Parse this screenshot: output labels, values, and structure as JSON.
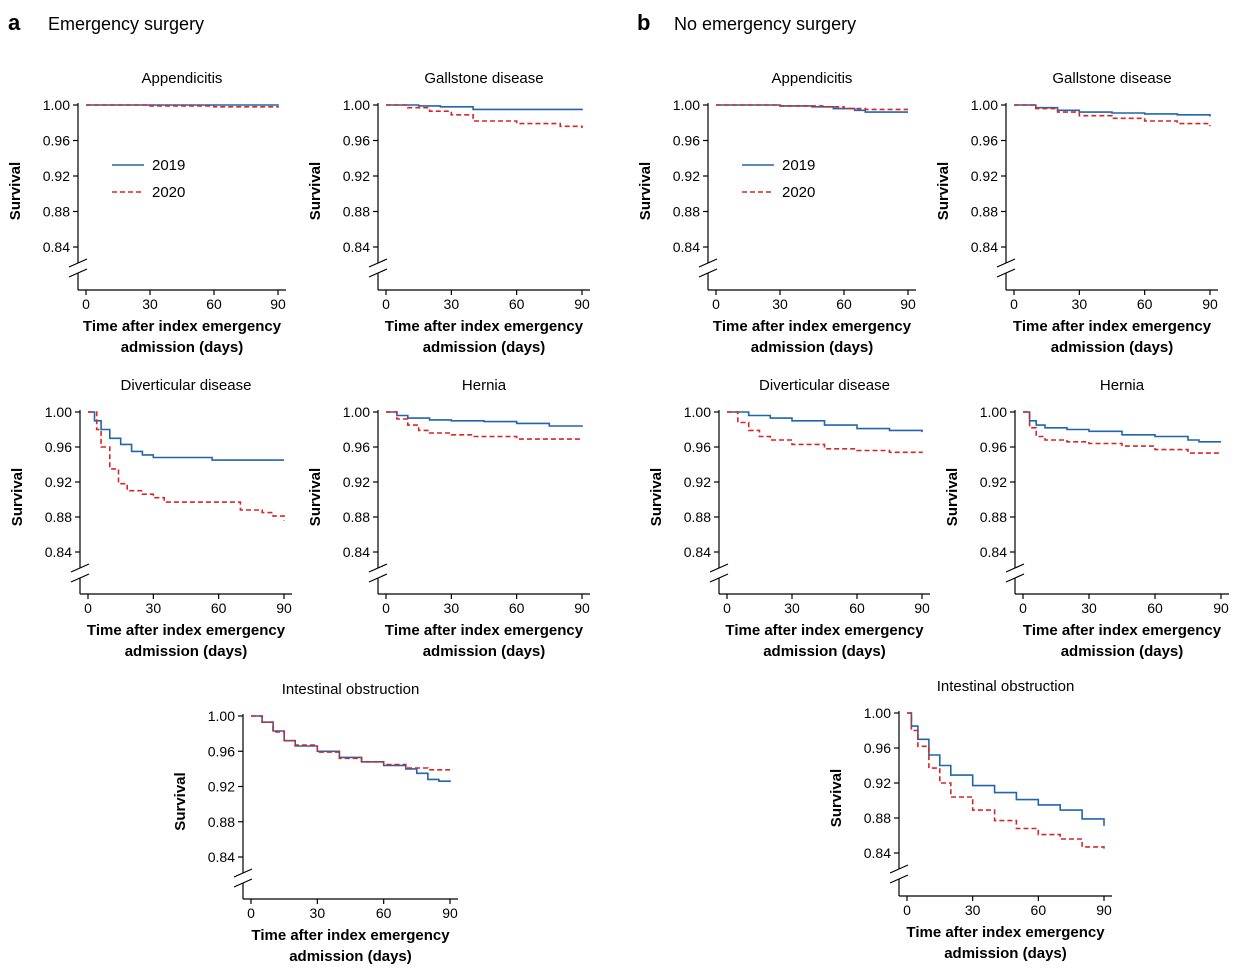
{
  "panels": [
    {
      "letter": "a",
      "title": "Emergency surgery"
    },
    {
      "letter": "b",
      "title": "No emergency surgery"
    }
  ],
  "colors": {
    "2019": "#2166ac",
    "2020": "#d62728",
    "axis": "#000000"
  },
  "chart_data": [
    {
      "panel": "a",
      "type": "line",
      "title": "Appendicitis",
      "xlabel": [
        "Time after index emergency",
        "admission (days)"
      ],
      "ylabel": "Survival",
      "xlim": [
        0,
        90
      ],
      "ylim": [
        0.84,
        1.0
      ],
      "xticks": [
        0,
        30,
        60,
        90
      ],
      "yticks": [
        "0.84",
        "0.88",
        "0.92",
        "0.96",
        "1.00"
      ],
      "axis_break": true,
      "legend": "inside-left",
      "series": [
        {
          "name": "2019",
          "style": "solid",
          "x": [
            0,
            90
          ],
          "y": [
            1.0,
            0.999
          ]
        },
        {
          "name": "2020",
          "style": "dashed",
          "x": [
            0,
            30,
            60,
            90
          ],
          "y": [
            1.0,
            0.999,
            0.998,
            0.997
          ]
        }
      ]
    },
    {
      "panel": "a",
      "type": "line",
      "title": "Gallstone disease",
      "xlabel": [
        "Time after index emergency",
        "admission (days)"
      ],
      "ylabel": "Survival",
      "xlim": [
        0,
        90
      ],
      "ylim": [
        0.84,
        1.0
      ],
      "xticks": [
        0,
        30,
        60,
        90
      ],
      "yticks": [
        "0.84",
        "0.88",
        "0.92",
        "0.96",
        "1.00"
      ],
      "axis_break": true,
      "series": [
        {
          "name": "2019",
          "style": "solid",
          "x": [
            0,
            15,
            25,
            40,
            90
          ],
          "y": [
            1.0,
            0.999,
            0.998,
            0.995,
            0.994
          ]
        },
        {
          "name": "2020",
          "style": "dashed",
          "x": [
            0,
            10,
            20,
            30,
            40,
            60,
            80,
            90
          ],
          "y": [
            1.0,
            0.997,
            0.993,
            0.989,
            0.982,
            0.979,
            0.976,
            0.974
          ]
        }
      ]
    },
    {
      "panel": "a",
      "type": "line",
      "title": "Diverticular disease",
      "xlabel": [
        "Time after index emergency",
        "admission (days)"
      ],
      "ylabel": "Survival",
      "xlim": [
        0,
        90
      ],
      "ylim": [
        0.84,
        1.0
      ],
      "xticks": [
        0,
        30,
        60,
        90
      ],
      "yticks": [
        "0.84",
        "0.88",
        "0.92",
        "0.96",
        "1.00"
      ],
      "axis_break": true,
      "series": [
        {
          "name": "2019",
          "style": "solid",
          "x": [
            0,
            3,
            6,
            10,
            15,
            20,
            25,
            30,
            45,
            57,
            90
          ],
          "y": [
            1.0,
            0.99,
            0.98,
            0.97,
            0.963,
            0.955,
            0.951,
            0.948,
            0.948,
            0.945,
            0.945
          ]
        },
        {
          "name": "2020",
          "style": "dashed",
          "x": [
            0,
            4,
            6,
            10,
            14,
            18,
            25,
            30,
            35,
            50,
            65,
            70,
            80,
            85,
            90
          ],
          "y": [
            1.0,
            0.98,
            0.96,
            0.935,
            0.918,
            0.91,
            0.906,
            0.902,
            0.897,
            0.897,
            0.897,
            0.888,
            0.885,
            0.881,
            0.876
          ]
        }
      ]
    },
    {
      "panel": "a",
      "type": "line",
      "title": "Hernia",
      "xlabel": [
        "Time after index emergency",
        "admission (days)"
      ],
      "ylabel": "Survival",
      "xlim": [
        0,
        90
      ],
      "ylim": [
        0.84,
        1.0
      ],
      "xticks": [
        0,
        30,
        60,
        90
      ],
      "yticks": [
        "0.84",
        "0.88",
        "0.92",
        "0.96",
        "1.00"
      ],
      "axis_break": true,
      "series": [
        {
          "name": "2019",
          "style": "solid",
          "x": [
            0,
            5,
            10,
            20,
            30,
            45,
            60,
            75,
            90
          ],
          "y": [
            1.0,
            0.996,
            0.993,
            0.991,
            0.99,
            0.989,
            0.987,
            0.984,
            0.983
          ]
        },
        {
          "name": "2020",
          "style": "dashed",
          "x": [
            0,
            5,
            10,
            15,
            20,
            30,
            40,
            60,
            90
          ],
          "y": [
            1.0,
            0.992,
            0.985,
            0.979,
            0.976,
            0.974,
            0.972,
            0.969,
            0.968
          ]
        }
      ]
    },
    {
      "panel": "a",
      "type": "line",
      "title": "Intestinal obstruction",
      "xlabel": [
        "Time after index emergency",
        "admission (days)"
      ],
      "ylabel": "Survival",
      "xlim": [
        0,
        90
      ],
      "ylim": [
        0.84,
        1.0
      ],
      "xticks": [
        0,
        30,
        60,
        90
      ],
      "yticks": [
        "0.84",
        "0.88",
        "0.92",
        "0.96",
        "1.00"
      ],
      "axis_break": true,
      "series": [
        {
          "name": "2019",
          "style": "solid",
          "x": [
            0,
            5,
            10,
            15,
            20,
            30,
            40,
            50,
            60,
            70,
            75,
            80,
            85,
            90
          ],
          "y": [
            1.0,
            0.993,
            0.983,
            0.972,
            0.966,
            0.96,
            0.953,
            0.948,
            0.944,
            0.94,
            0.935,
            0.928,
            0.926,
            0.925
          ]
        },
        {
          "name": "2020",
          "style": "dashed",
          "x": [
            0,
            5,
            10,
            15,
            20,
            30,
            40,
            50,
            60,
            70,
            80,
            90
          ],
          "y": [
            1.0,
            0.993,
            0.982,
            0.972,
            0.967,
            0.959,
            0.952,
            0.948,
            0.945,
            0.941,
            0.939,
            0.939
          ]
        }
      ]
    },
    {
      "panel": "b",
      "type": "line",
      "title": "Appendicitis",
      "xlabel": [
        "Time after index emergency",
        "admission (days)"
      ],
      "ylabel": "Survival",
      "xlim": [
        0,
        90
      ],
      "ylim": [
        0.84,
        1.0
      ],
      "xticks": [
        0,
        30,
        60,
        90
      ],
      "yticks": [
        "0.84",
        "0.88",
        "0.92",
        "0.96",
        "1.00"
      ],
      "axis_break": true,
      "legend": "inside-left",
      "series": [
        {
          "name": "2019",
          "style": "solid",
          "x": [
            0,
            30,
            45,
            55,
            65,
            70,
            90
          ],
          "y": [
            1.0,
            0.999,
            0.998,
            0.996,
            0.994,
            0.992,
            0.992
          ]
        },
        {
          "name": "2020",
          "style": "dashed",
          "x": [
            0,
            30,
            50,
            60,
            70,
            90
          ],
          "y": [
            1.0,
            0.999,
            0.998,
            0.996,
            0.995,
            0.995
          ]
        }
      ]
    },
    {
      "panel": "b",
      "type": "line",
      "title": "Gallstone disease",
      "xlabel": [
        "Time after index emergency",
        "admission (days)"
      ],
      "ylabel": "Survival",
      "xlim": [
        0,
        90
      ],
      "ylim": [
        0.84,
        1.0
      ],
      "xticks": [
        0,
        30,
        60,
        90
      ],
      "yticks": [
        "0.84",
        "0.88",
        "0.92",
        "0.96",
        "1.00"
      ],
      "axis_break": true,
      "series": [
        {
          "name": "2019",
          "style": "solid",
          "x": [
            0,
            10,
            20,
            30,
            45,
            60,
            75,
            90
          ],
          "y": [
            1.0,
            0.997,
            0.994,
            0.992,
            0.991,
            0.99,
            0.989,
            0.987
          ]
        },
        {
          "name": "2020",
          "style": "dashed",
          "x": [
            0,
            10,
            20,
            30,
            45,
            60,
            75,
            90
          ],
          "y": [
            1.0,
            0.996,
            0.992,
            0.988,
            0.985,
            0.982,
            0.979,
            0.976
          ]
        }
      ]
    },
    {
      "panel": "b",
      "type": "line",
      "title": "Diverticular disease",
      "xlabel": [
        "Time after index emergency",
        "admission (days)"
      ],
      "ylabel": "Survival",
      "xlim": [
        0,
        90
      ],
      "ylim": [
        0.84,
        1.0
      ],
      "xticks": [
        0,
        30,
        60,
        90
      ],
      "yticks": [
        "0.84",
        "0.88",
        "0.92",
        "0.96",
        "1.00"
      ],
      "axis_break": true,
      "series": [
        {
          "name": "2019",
          "style": "solid",
          "x": [
            0,
            10,
            20,
            30,
            45,
            60,
            75,
            90
          ],
          "y": [
            1.0,
            0.996,
            0.993,
            0.99,
            0.985,
            0.981,
            0.979,
            0.977
          ]
        },
        {
          "name": "2020",
          "style": "dashed",
          "x": [
            0,
            5,
            10,
            15,
            20,
            30,
            45,
            60,
            75,
            90
          ],
          "y": [
            1.0,
            0.988,
            0.979,
            0.972,
            0.968,
            0.963,
            0.958,
            0.956,
            0.954,
            0.953
          ]
        }
      ]
    },
    {
      "panel": "b",
      "type": "line",
      "title": "Hernia",
      "xlabel": [
        "Time after index emergency",
        "admission (days)"
      ],
      "ylabel": "Survival",
      "xlim": [
        0,
        90
      ],
      "ylim": [
        0.84,
        1.0
      ],
      "xticks": [
        0,
        30,
        60,
        90
      ],
      "yticks": [
        "0.84",
        "0.88",
        "0.92",
        "0.96",
        "1.00"
      ],
      "axis_break": true,
      "series": [
        {
          "name": "2019",
          "style": "solid",
          "x": [
            0,
            3,
            6,
            10,
            20,
            30,
            45,
            60,
            75,
            80,
            90
          ],
          "y": [
            1.0,
            0.99,
            0.985,
            0.982,
            0.98,
            0.978,
            0.974,
            0.972,
            0.968,
            0.966,
            0.966
          ]
        },
        {
          "name": "2020",
          "style": "dashed",
          "x": [
            0,
            3,
            6,
            10,
            20,
            30,
            45,
            60,
            75,
            90
          ],
          "y": [
            1.0,
            0.982,
            0.972,
            0.968,
            0.966,
            0.964,
            0.961,
            0.957,
            0.953,
            0.952
          ]
        }
      ]
    },
    {
      "panel": "b",
      "type": "line",
      "title": "Intestinal obstruction",
      "xlabel": [
        "Time after index emergency",
        "admission (days)"
      ],
      "ylabel": "Survival",
      "xlim": [
        0,
        90
      ],
      "ylim": [
        0.84,
        1.0
      ],
      "xticks": [
        0,
        30,
        60,
        90
      ],
      "yticks": [
        "0.84",
        "0.88",
        "0.92",
        "0.96",
        "1.00"
      ],
      "axis_break": true,
      "series": [
        {
          "name": "2019",
          "style": "solid",
          "x": [
            0,
            2,
            5,
            10,
            15,
            20,
            30,
            40,
            50,
            60,
            70,
            80,
            90
          ],
          "y": [
            1.0,
            0.985,
            0.97,
            0.952,
            0.94,
            0.929,
            0.917,
            0.909,
            0.901,
            0.895,
            0.889,
            0.879,
            0.871
          ]
        },
        {
          "name": "2020",
          "style": "dashed",
          "x": [
            0,
            2,
            5,
            10,
            15,
            20,
            30,
            40,
            50,
            60,
            70,
            80,
            90
          ],
          "y": [
            1.0,
            0.98,
            0.962,
            0.937,
            0.92,
            0.904,
            0.889,
            0.877,
            0.868,
            0.861,
            0.856,
            0.847,
            0.845
          ]
        }
      ]
    }
  ]
}
